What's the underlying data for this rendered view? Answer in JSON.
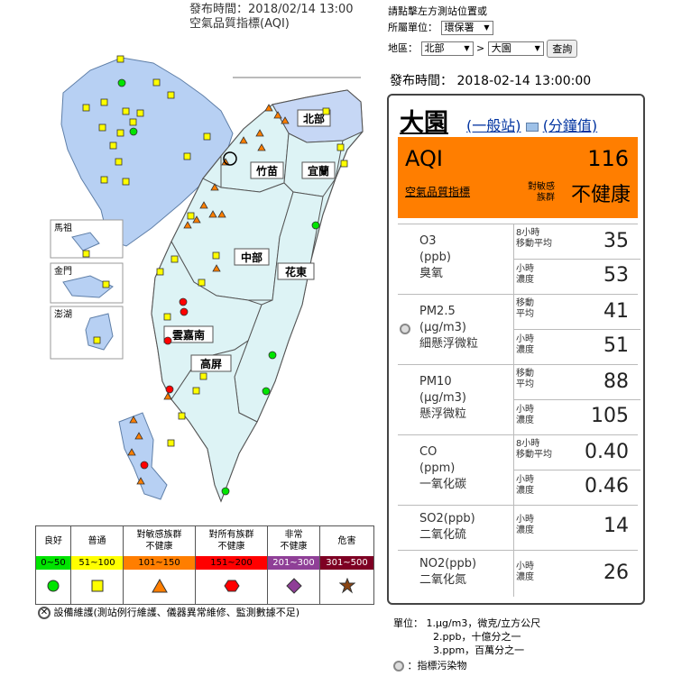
{
  "header": {
    "publish_time": "發布時間：2018/02/14 13:00",
    "title": "空氣品質指標(AQI)"
  },
  "controls": {
    "hint": "請點擊左方測站位置或",
    "agency_label": "所屬單位：",
    "agency_value": "環保署",
    "region_label": "地區：",
    "region_value": "北部",
    "separator": ">",
    "station_value": "大園",
    "query_button": "查詢"
  },
  "publish_time_full": "發布時間： 2018-02-14 13:00:00",
  "station": {
    "name": "大園",
    "type_link": "(一般站)",
    "minute_link": "(分鐘值)",
    "aqi_label": "AQI",
    "aqi_value": "116",
    "aqi_sub": "空氣品質指標",
    "status_small": "對敏感\n族群",
    "status_big": "不健康",
    "aqi_color": "#ff7e00"
  },
  "pollutants": [
    {
      "name": "O3",
      "unit": "(ppb)",
      "cname": "臭氧",
      "rows": [
        {
          "label": "8小時\n移動平均",
          "value": "35"
        },
        {
          "label": "小時\n濃度",
          "value": "53"
        }
      ]
    },
    {
      "name": "PM2.5",
      "unit": "(μg/m3)",
      "cname": "細懸浮微粒",
      "rows": [
        {
          "label": "移動\n平均",
          "value": "41"
        },
        {
          "label": "小時\n濃度",
          "value": "51"
        }
      ]
    },
    {
      "name": "PM10",
      "unit": "(μg/m3)",
      "cname": "懸浮微粒",
      "rows": [
        {
          "label": "移動\n平均",
          "value": "88"
        },
        {
          "label": "小時\n濃度",
          "value": "105"
        }
      ]
    },
    {
      "name": "CO",
      "unit": "(ppm)",
      "cname": "一氧化碳",
      "rows": [
        {
          "label": "8小時\n移動平均",
          "value": "0.40"
        },
        {
          "label": "小時\n濃度",
          "value": "0.46"
        }
      ]
    },
    {
      "name": "SO2(ppb)",
      "unit": "",
      "cname": "二氧化硫",
      "rows": [
        {
          "label": "小時\n濃度",
          "value": "14"
        }
      ]
    },
    {
      "name": "NO2(ppb)",
      "unit": "",
      "cname": "二氧化氮",
      "rows": [
        {
          "label": "小時\n濃度",
          "value": "26"
        }
      ]
    }
  ],
  "map_regions": [
    "北部",
    "竹苗",
    "宜蘭",
    "中部",
    "花東",
    "雲嘉南",
    "高屏",
    "馬祖",
    "金門",
    "澎湖"
  ],
  "legend": [
    {
      "name": "良好",
      "range": "0~50",
      "color": "#00e400",
      "marker": "circle"
    },
    {
      "name": "普通",
      "range": "51~100",
      "color": "#ffff00",
      "marker": "square"
    },
    {
      "name": "對敏感族群\n不健康",
      "range": "101~150",
      "color": "#ff7e00",
      "marker": "triangle"
    },
    {
      "name": "對所有族群\n不健康",
      "range": "151~200",
      "color": "#ff0000",
      "marker": "hexagon"
    },
    {
      "name": "非常\n不健康",
      "range": "201~300",
      "color": "#8f3f97",
      "marker": "diamond"
    },
    {
      "name": "危害",
      "range": "301~500",
      "color": "#7e0023",
      "marker": "star"
    }
  ],
  "maintenance_note": "設備維護(測站例行維護、儀器異常維修、監測數據不足)",
  "units": {
    "label": "單位：",
    "u1": "1.μg/m3，微克/立方公尺",
    "u2": "2.ppb，十億分之一",
    "u3": "3.ppm，百萬分之一",
    "indicator": "：指標污染物"
  }
}
